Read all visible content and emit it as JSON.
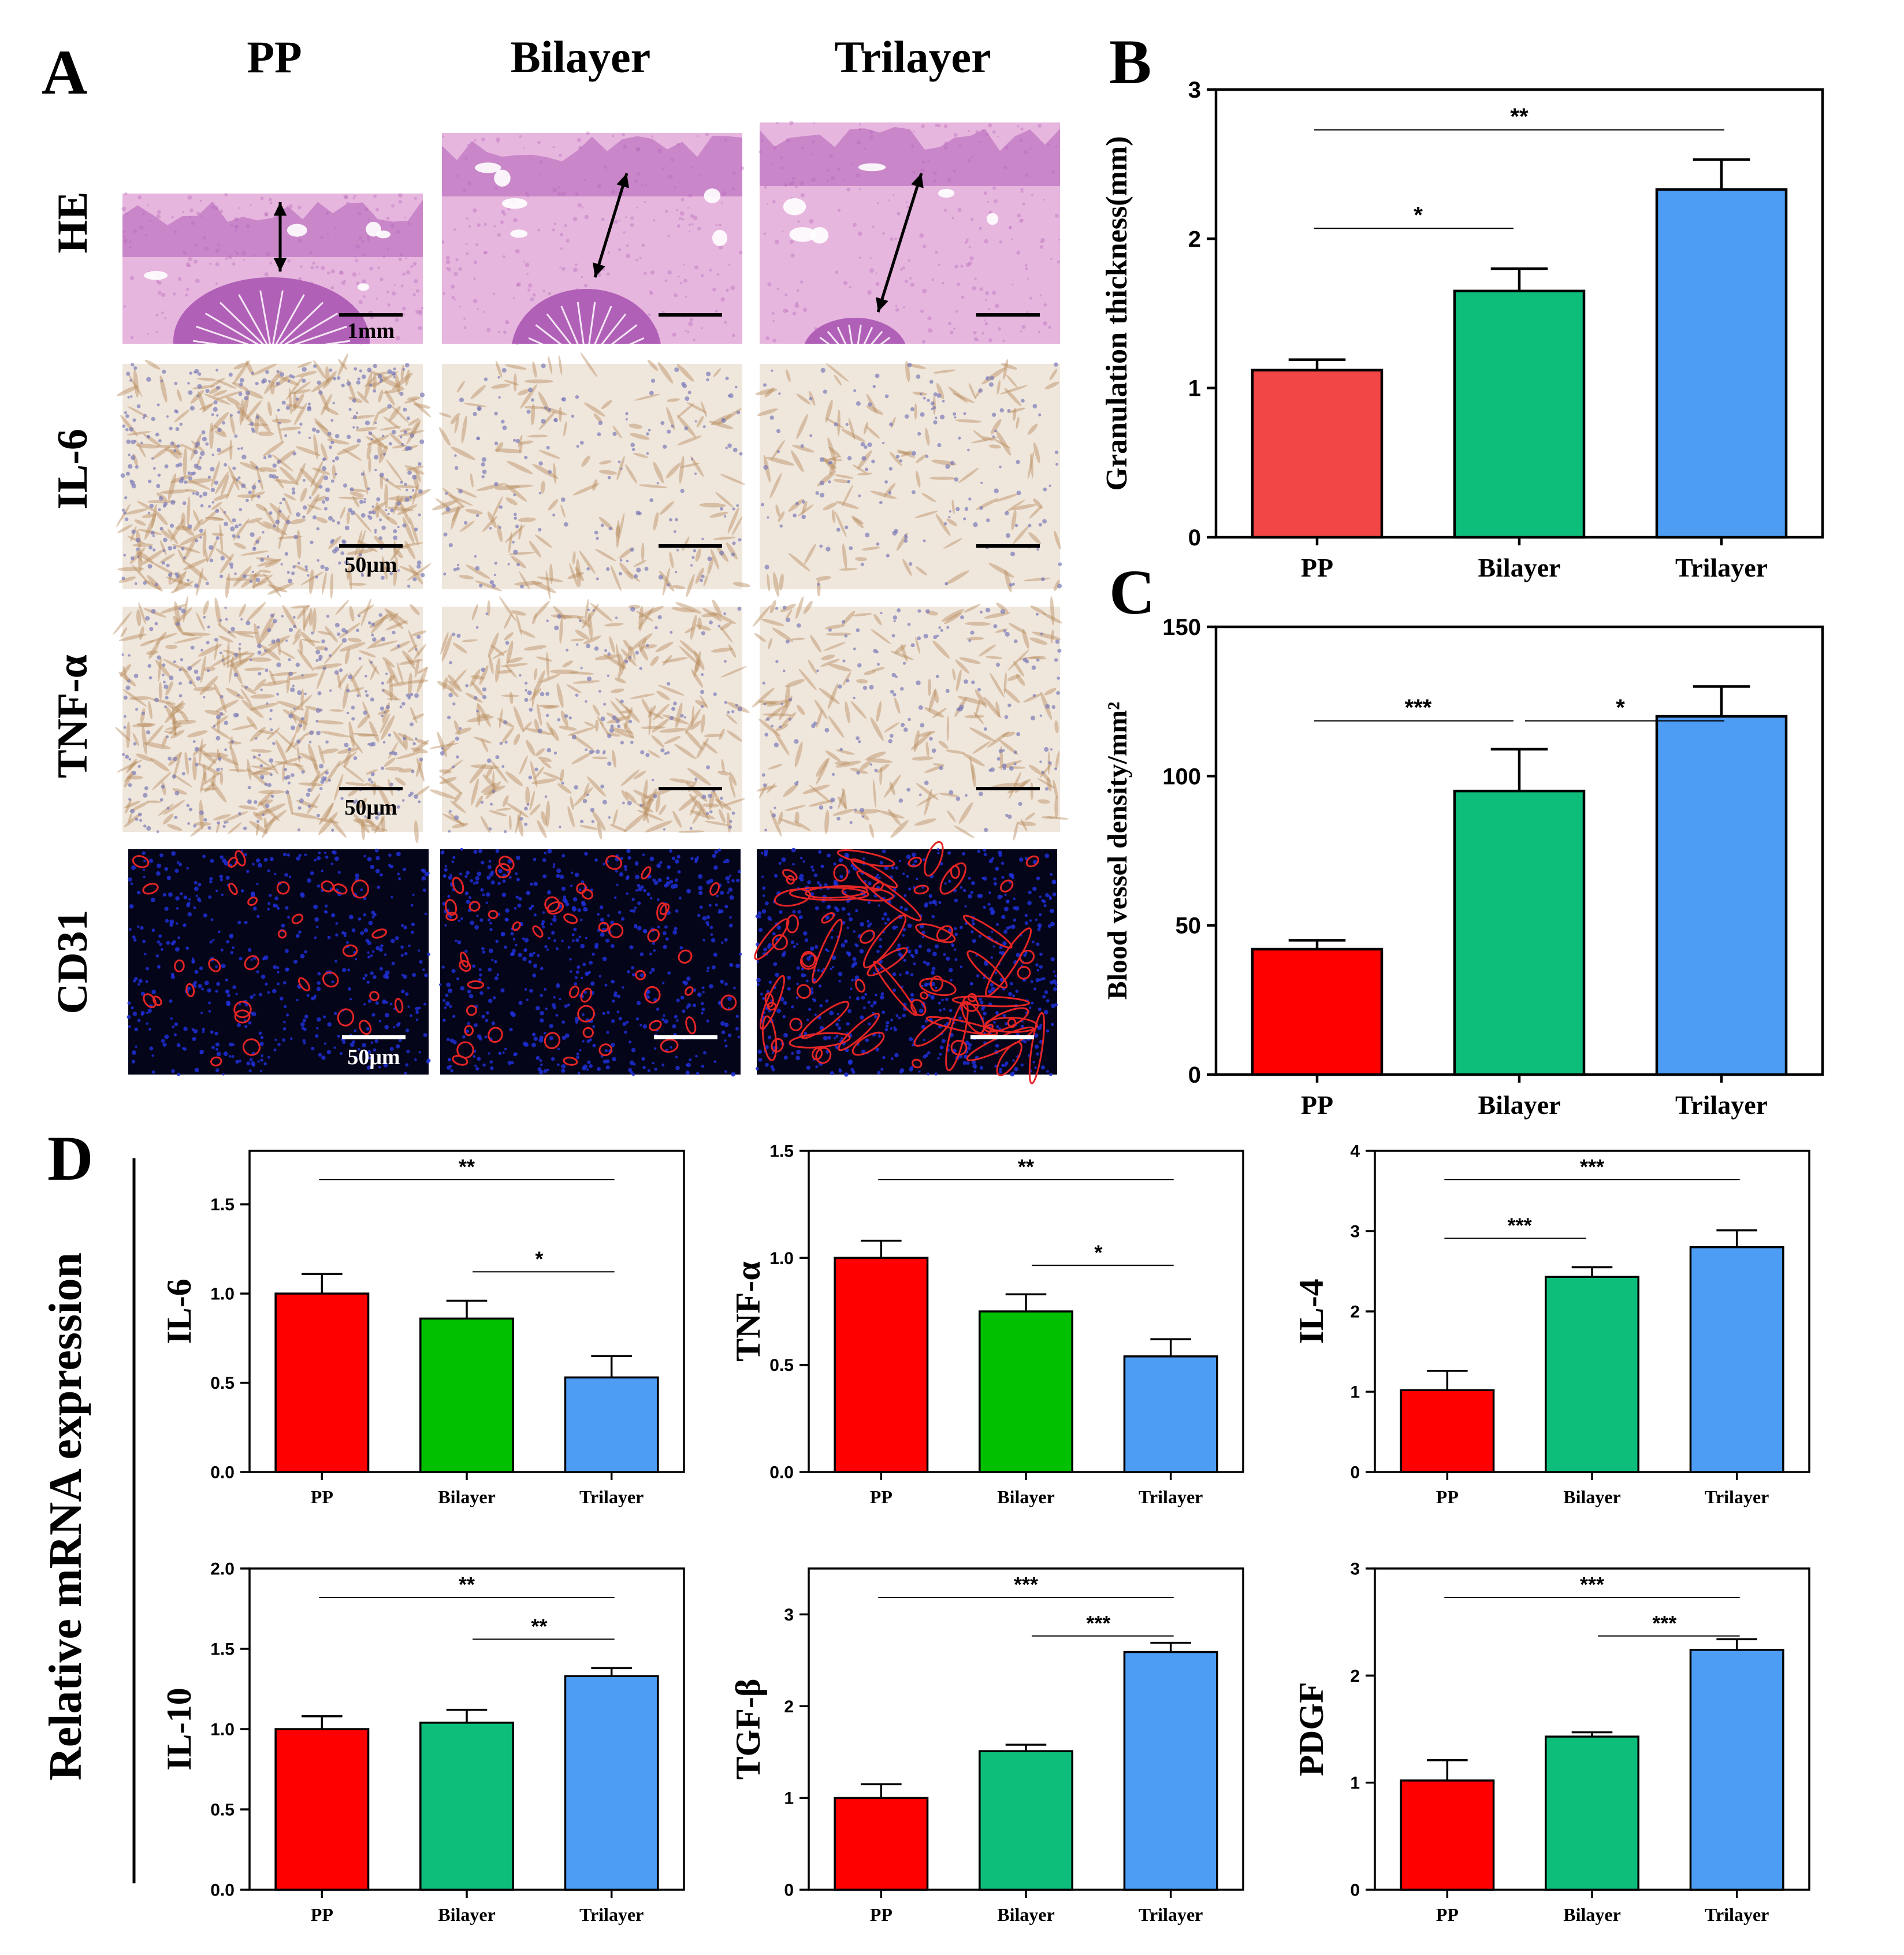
{
  "panel_letters": [
    "A",
    "B",
    "C",
    "D"
  ],
  "micrographs": {
    "columns": [
      "PP",
      "Bilayer",
      "Trilayer"
    ],
    "rows": [
      "HE",
      "IL-6",
      "TNF-α",
      "CD31"
    ],
    "scale_labels": [
      "1mm",
      "50μm",
      "50μm",
      "50μm"
    ],
    "colors": {
      "he_tissue": "#e7b6de",
      "he_dense": "#b160b8",
      "ihc_bg": "#efe6dc",
      "ihc_brown": "#b98c5e",
      "ihc_nuclei": "#7b7ab8",
      "cd31_bg": "#05051a",
      "cd31_nuclei": "#1f2fd6",
      "cd31_vessel": "#e52525"
    }
  },
  "chart_data": [
    {
      "id": "B",
      "type": "bar",
      "categories": [
        "PP",
        "Bilayer",
        "Trilayer"
      ],
      "values": [
        1.12,
        1.65,
        2.33
      ],
      "errors": [
        0.07,
        0.15,
        0.2
      ],
      "ylabel": "Granulation thickness(mm)",
      "ylim": [
        0,
        3
      ],
      "yticks": [
        "0",
        "1",
        "2",
        "3"
      ],
      "colors": [
        "#f24646",
        "#0dbe7a",
        "#4d9df5"
      ],
      "significance": [
        {
          "from": 0,
          "to": 2,
          "label": "**"
        },
        {
          "from": 0,
          "to": 1,
          "label": "*"
        }
      ]
    },
    {
      "id": "C",
      "type": "bar",
      "categories": [
        "PP",
        "Bilayer",
        "Trilayer"
      ],
      "values": [
        42,
        95,
        120
      ],
      "errors": [
        3,
        14,
        10
      ],
      "ylabel": "Blood vessel density/mm²",
      "ylim": [
        0,
        150
      ],
      "yticks": [
        "0",
        "50",
        "100",
        "150"
      ],
      "colors": [
        "#ff0000",
        "#0dbe7a",
        "#4d9df5"
      ],
      "significance": [
        {
          "from": 0,
          "to": 1,
          "label": "***"
        },
        {
          "from": 1,
          "to": 2,
          "label": "*"
        }
      ]
    },
    {
      "id": "IL-6",
      "type": "bar",
      "categories": [
        "PP",
        "Bilayer",
        "Trilayer"
      ],
      "values": [
        1.0,
        0.86,
        0.53
      ],
      "errors": [
        0.11,
        0.1,
        0.12
      ],
      "ylabel": "IL-6",
      "ylim": [
        0,
        1.8
      ],
      "yticks": [
        "0.0",
        "0.5",
        "1.0",
        "1.5"
      ],
      "colors": [
        "#ff0000",
        "#00c000",
        "#4d9df5"
      ],
      "significance": [
        {
          "from": 0,
          "to": 2,
          "label": "**"
        },
        {
          "from": 1,
          "to": 2,
          "label": "*"
        }
      ]
    },
    {
      "id": "TNF-α",
      "type": "bar",
      "categories": [
        "PP",
        "Bilayer",
        "Trilayer"
      ],
      "values": [
        1.0,
        0.75,
        0.54
      ],
      "errors": [
        0.08,
        0.08,
        0.08
      ],
      "ylabel": "TNF-α",
      "ylim": [
        0,
        1.5
      ],
      "yticks": [
        "0.0",
        "0.5",
        "1.0",
        "1.5"
      ],
      "colors": [
        "#ff0000",
        "#00c000",
        "#4d9df5"
      ],
      "significance": [
        {
          "from": 0,
          "to": 2,
          "label": "**"
        },
        {
          "from": 1,
          "to": 2,
          "label": "*"
        }
      ]
    },
    {
      "id": "IL-4",
      "type": "bar",
      "categories": [
        "PP",
        "Bilayer",
        "Trilayer"
      ],
      "values": [
        1.02,
        2.43,
        2.8
      ],
      "errors": [
        0.24,
        0.12,
        0.21
      ],
      "ylabel": "IL-4",
      "ylim": [
        0,
        4
      ],
      "yticks": [
        "0",
        "1",
        "2",
        "3",
        "4"
      ],
      "colors": [
        "#ff0000",
        "#0dbe7a",
        "#4d9df5"
      ],
      "significance": [
        {
          "from": 0,
          "to": 2,
          "label": "***"
        },
        {
          "from": 0,
          "to": 1,
          "label": "***"
        }
      ]
    },
    {
      "id": "IL-10",
      "type": "bar",
      "categories": [
        "PP",
        "Bilayer",
        "Trilayer"
      ],
      "values": [
        1.0,
        1.04,
        1.33
      ],
      "errors": [
        0.08,
        0.08,
        0.05
      ],
      "ylabel": "IL-10",
      "ylim": [
        0,
        2.0
      ],
      "yticks": [
        "0.0",
        "0.5",
        "1.0",
        "1.5",
        "2.0"
      ],
      "colors": [
        "#ff0000",
        "#0dbe7a",
        "#4d9df5"
      ],
      "significance": [
        {
          "from": 0,
          "to": 2,
          "label": "**"
        },
        {
          "from": 1,
          "to": 2,
          "label": "**"
        }
      ]
    },
    {
      "id": "TGF-β",
      "type": "bar",
      "categories": [
        "PP",
        "Bilayer",
        "Trilayer"
      ],
      "values": [
        1.0,
        1.51,
        2.59
      ],
      "errors": [
        0.15,
        0.07,
        0.1
      ],
      "ylabel": "TGF-β",
      "ylim": [
        0,
        3.5
      ],
      "yticks": [
        "0",
        "1",
        "2",
        "3"
      ],
      "colors": [
        "#ff0000",
        "#0dbe7a",
        "#4d9df5"
      ],
      "significance": [
        {
          "from": 0,
          "to": 2,
          "label": "***"
        },
        {
          "from": 1,
          "to": 2,
          "label": "***"
        }
      ]
    },
    {
      "id": "PDGF",
      "type": "bar",
      "categories": [
        "PP",
        "Bilayer",
        "Trilayer"
      ],
      "values": [
        1.02,
        1.43,
        2.24
      ],
      "errors": [
        0.19,
        0.04,
        0.1
      ],
      "ylabel": "PDGF",
      "ylim": [
        0,
        3
      ],
      "yticks": [
        "0",
        "1",
        "2",
        "3"
      ],
      "colors": [
        "#ff0000",
        "#0dbe7a",
        "#4d9df5"
      ],
      "significance": [
        {
          "from": 0,
          "to": 2,
          "label": "***"
        },
        {
          "from": 1,
          "to": 2,
          "label": "***"
        }
      ]
    }
  ],
  "panel_d_label": "Relative mRNA expression"
}
